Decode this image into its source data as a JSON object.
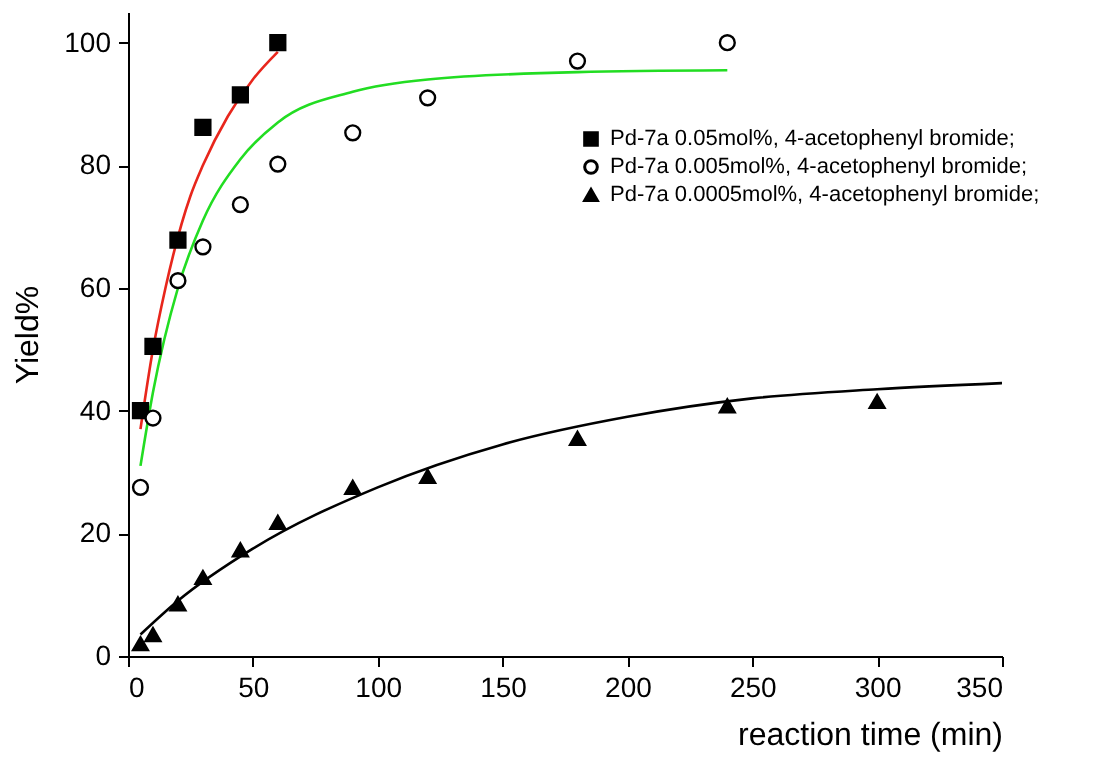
{
  "chart_data": {
    "type": "scatter",
    "xlabel": "reaction time (min)",
    "ylabel": "Yield%",
    "xlim": [
      0,
      350
    ],
    "ylim": [
      0,
      105
    ],
    "xticks": [
      0,
      50,
      100,
      150,
      200,
      250,
      300,
      350
    ],
    "yticks": [
      0,
      20,
      40,
      60,
      80,
      100
    ],
    "grid": false,
    "legend": "top right",
    "series": [
      {
        "name": "Pd-7a 0.05mol%, 4-acetophenyl bromide;",
        "color": "#000000",
        "marker": "square",
        "x": [
          5,
          10,
          20,
          30,
          45,
          60
        ],
        "values": [
          40,
          50.5,
          67.8,
          86.2,
          91.5,
          100
        ]
      },
      {
        "name": "Pd-7a 0.005mol%, 4-acetophenyl bromide;",
        "color": "#000000",
        "marker": "circle",
        "x": [
          5,
          10,
          20,
          30,
          45,
          60,
          90,
          120,
          180,
          240
        ],
        "values": [
          27.5,
          38.8,
          61.2,
          66.7,
          73.6,
          80.2,
          85.3,
          91,
          97,
          100
        ]
      },
      {
        "name": "Pd-7a 0.0005mol%, 4-acetophenyl bromide;",
        "color": "#000000",
        "marker": "triangle",
        "x": [
          5,
          10,
          20,
          30,
          45,
          60,
          90,
          120,
          180,
          240,
          300
        ],
        "values": [
          2,
          3.5,
          8.5,
          12.8,
          17.3,
          21.8,
          27.5,
          29.3,
          35.5,
          40.8,
          41.5
        ]
      },
      {
        "type": "line",
        "color": "#e8261c",
        "x": [
          5,
          10,
          15,
          25,
          30,
          40,
          50,
          60
        ],
        "values": [
          37,
          50,
          60,
          75,
          80,
          88,
          94,
          98.5
        ]
      },
      {
        "type": "line",
        "color": "#22dd22",
        "x": [
          5,
          10,
          20,
          30,
          45,
          60,
          90,
          120,
          180,
          240
        ],
        "values": [
          31,
          43,
          60,
          71,
          81,
          87,
          92,
          94,
          95.2,
          95.5
        ]
      },
      {
        "type": "line",
        "color": "#000000",
        "x": [
          5,
          20,
          50,
          100,
          150,
          200,
          250,
          300,
          350
        ],
        "values": [
          3.5,
          9,
          17.5,
          27.5,
          34.5,
          39,
          42,
          43.5,
          44.5
        ]
      }
    ]
  }
}
